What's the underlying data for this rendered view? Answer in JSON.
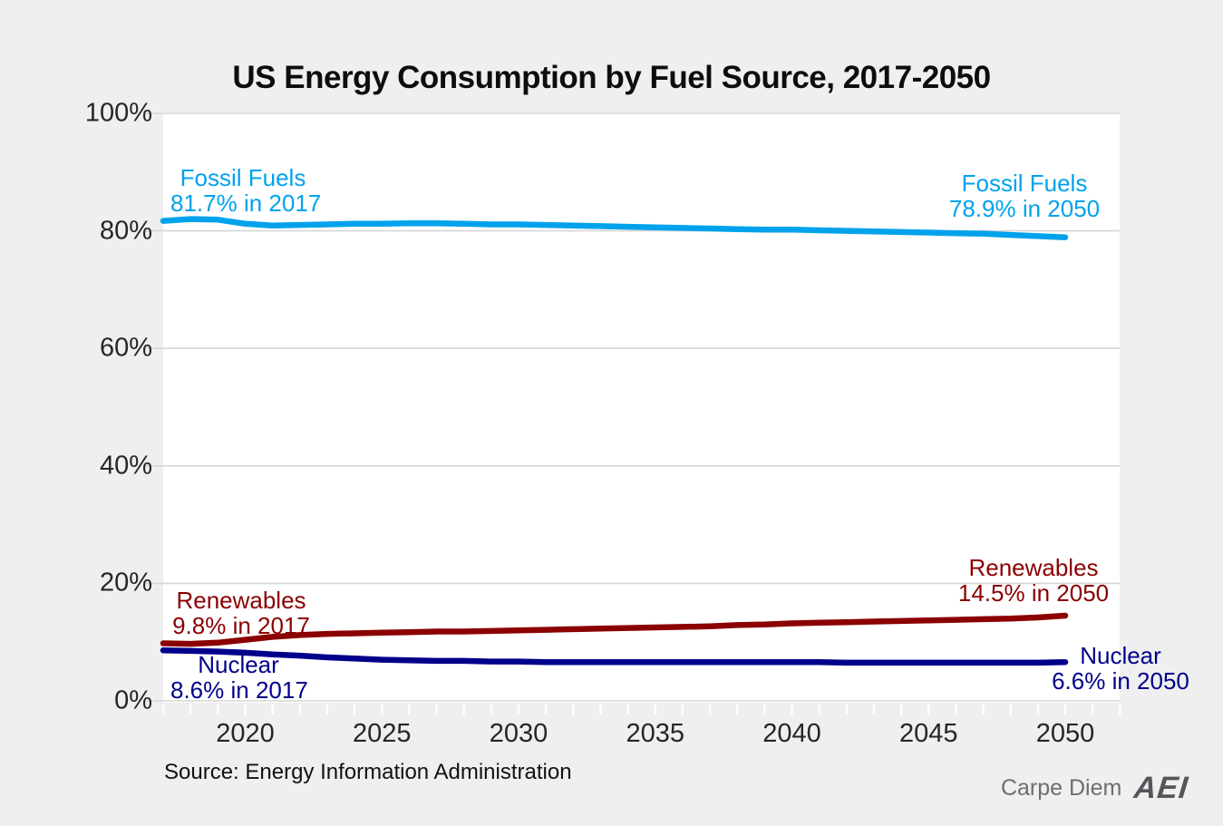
{
  "title": "US Energy Consumption by Fuel Source, 2017-2050",
  "source_note": "Source: Energy Information Administration",
  "branding": {
    "carpe_diem": "Carpe Diem",
    "aei": "AEI"
  },
  "colors": {
    "background": "#efefef",
    "plot_background": "#ffffff",
    "gridline": "#d6d6d6",
    "x_tick": "#ffffff",
    "fossil": "#00a2ec",
    "renewables": "#8b0000",
    "nuclear": "#00008b"
  },
  "annotations": {
    "fossil_start": {
      "line1": "Fossil Fuels",
      "line2": "81.7% in 2017"
    },
    "fossil_end": {
      "line1": "Fossil Fuels",
      "line2": "78.9% in 2050"
    },
    "renewables_start": {
      "line1": "Renewables",
      "line2": "9.8% in 2017"
    },
    "renewables_end": {
      "line1": "Renewables",
      "line2": "14.5% in 2050"
    },
    "nuclear_start": {
      "line1": "Nuclear",
      "line2": "8.6% in 2017"
    },
    "nuclear_end": {
      "line1": "Nuclear",
      "line2": "6.6% in 2050"
    }
  },
  "chart_data": {
    "type": "line",
    "title": "US Energy Consumption by Fuel Source, 2017-2050",
    "xlabel": "",
    "ylabel": "",
    "xlim": [
      2017,
      2052
    ],
    "ylim": [
      0,
      100
    ],
    "grid": "horizontal",
    "legend_position": "inline-annotations",
    "y_ticks": [
      {
        "label": "0%",
        "value": 0
      },
      {
        "label": "20%",
        "value": 20
      },
      {
        "label": "40%",
        "value": 40
      },
      {
        "label": "60%",
        "value": 60
      },
      {
        "label": "80%",
        "value": 80
      },
      {
        "label": "100%",
        "value": 100
      }
    ],
    "x_ticks": [
      {
        "label": "2020",
        "value": 2020
      },
      {
        "label": "2025",
        "value": 2025
      },
      {
        "label": "2030",
        "value": 2030
      },
      {
        "label": "2035",
        "value": 2035
      },
      {
        "label": "2040",
        "value": 2040
      },
      {
        "label": "2045",
        "value": 2045
      },
      {
        "label": "2050",
        "value": 2050
      }
    ],
    "x": [
      2017,
      2018,
      2019,
      2020,
      2021,
      2022,
      2023,
      2024,
      2025,
      2026,
      2027,
      2028,
      2029,
      2030,
      2031,
      2032,
      2033,
      2034,
      2035,
      2036,
      2037,
      2038,
      2039,
      2040,
      2041,
      2042,
      2043,
      2044,
      2045,
      2046,
      2047,
      2048,
      2049,
      2050
    ],
    "series": [
      {
        "name": "Fossil Fuels",
        "color_key": "fossil",
        "start_value_label": "81.7% in 2017",
        "end_value_label": "78.9% in 2050",
        "values": [
          81.7,
          82.0,
          81.9,
          81.2,
          80.9,
          81.0,
          81.1,
          81.2,
          81.2,
          81.3,
          81.3,
          81.2,
          81.1,
          81.1,
          81.0,
          80.9,
          80.8,
          80.7,
          80.6,
          80.5,
          80.4,
          80.3,
          80.2,
          80.2,
          80.1,
          80.0,
          79.9,
          79.8,
          79.7,
          79.6,
          79.5,
          79.3,
          79.1,
          78.9
        ]
      },
      {
        "name": "Renewables",
        "color_key": "renewables",
        "start_value_label": "9.8% in 2017",
        "end_value_label": "14.5% in 2050",
        "values": [
          9.8,
          9.7,
          9.9,
          10.4,
          10.9,
          11.2,
          11.4,
          11.5,
          11.6,
          11.7,
          11.8,
          11.8,
          11.9,
          12.0,
          12.1,
          12.2,
          12.3,
          12.4,
          12.5,
          12.6,
          12.7,
          12.9,
          13.0,
          13.2,
          13.3,
          13.4,
          13.5,
          13.6,
          13.7,
          13.8,
          13.9,
          14.0,
          14.2,
          14.5
        ]
      },
      {
        "name": "Nuclear",
        "color_key": "nuclear",
        "start_value_label": "8.6% in 2017",
        "end_value_label": "6.6% in 2050",
        "values": [
          8.6,
          8.5,
          8.4,
          8.2,
          7.9,
          7.7,
          7.4,
          7.2,
          7.0,
          6.9,
          6.8,
          6.8,
          6.7,
          6.7,
          6.6,
          6.6,
          6.6,
          6.6,
          6.6,
          6.6,
          6.6,
          6.6,
          6.6,
          6.6,
          6.6,
          6.5,
          6.5,
          6.5,
          6.5,
          6.5,
          6.5,
          6.5,
          6.5,
          6.6
        ]
      }
    ]
  }
}
